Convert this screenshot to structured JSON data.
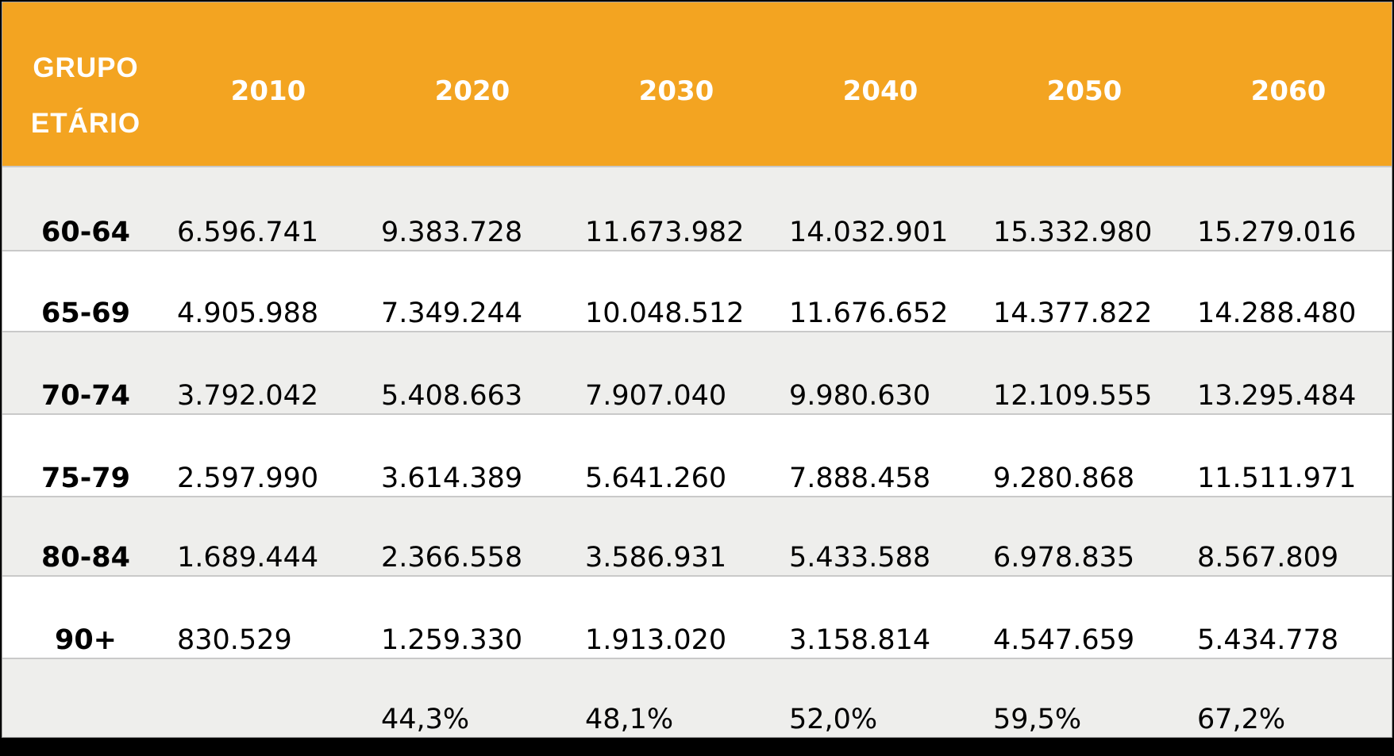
{
  "table": {
    "header": {
      "group_line1": "GRUPO",
      "group_line2": "ETÁRIO",
      "years": [
        "2010",
        "2020",
        "2030",
        "2040",
        "2050",
        "2060"
      ]
    },
    "rows": [
      {
        "label": "60-64",
        "values": [
          "6.596.741",
          "9.383.728",
          "11.673.982",
          "14.032.901",
          "15.332.980",
          "15.279.016"
        ]
      },
      {
        "label": "65-69",
        "values": [
          "4.905.988",
          "7.349.244",
          "10.048.512",
          "11.676.652",
          "14.377.822",
          "14.288.480"
        ]
      },
      {
        "label": "70-74",
        "values": [
          "3.792.042",
          "5.408.663",
          "7.907.040",
          "9.980.630",
          "12.109.555",
          "13.295.484"
        ]
      },
      {
        "label": "75-79",
        "values": [
          "2.597.990",
          "3.614.389",
          "5.641.260",
          "7.888.458",
          "9.280.868",
          "11.511.971"
        ]
      },
      {
        "label": "80-84",
        "values": [
          "1.689.444",
          "2.366.558",
          "3.586.931",
          "5.433.588",
          "6.978.835",
          "8.567.809"
        ]
      },
      {
        "label": "90+",
        "values": [
          "830.529",
          "1.259.330",
          "1.913.020",
          "3.158.814",
          "4.547.659",
          "5.434.778"
        ]
      },
      {
        "label": "",
        "values": [
          "",
          "44,3%",
          "48,1%",
          "52,0%",
          "59,5%",
          "67,2%"
        ]
      }
    ]
  }
}
